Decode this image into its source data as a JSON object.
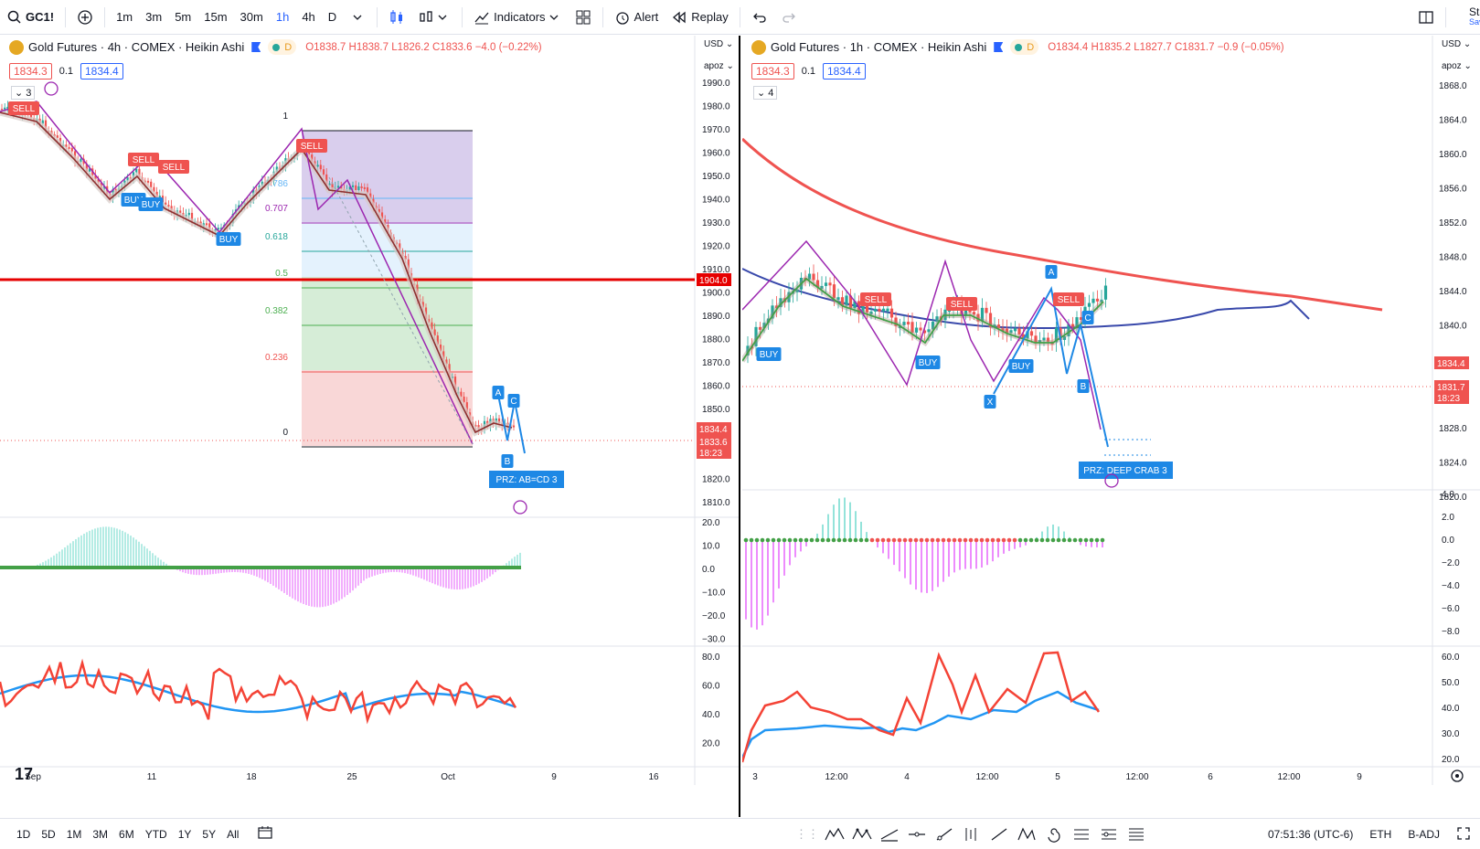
{
  "toolbar": {
    "symbol": "GC1!",
    "intervals": [
      "1m",
      "3m",
      "5m",
      "15m",
      "30m",
      "1h",
      "4h",
      "D"
    ],
    "active_interval": "1h",
    "indicators_label": "Indicators",
    "alert_label": "Alert",
    "replay_label": "Replay",
    "right_label_top": "Sta",
    "right_label_sub": "Save"
  },
  "left_chart": {
    "title": "Gold Futures · 4h · COMEX · Heikin Ashi",
    "delay_badge": "D",
    "ohlc": {
      "o": "O1838.7",
      "h": "H1838.7",
      "l": "L1826.2",
      "c": "C1833.6",
      "chg": "−4.0 (−0.22%)"
    },
    "bid": "1834.3",
    "spread": "0.1",
    "ask": "1834.4",
    "collapse_count": "3",
    "currency": "USD",
    "scale_mode": "apoz",
    "price_axis": [
      "1990.0",
      "1980.0",
      "1970.0",
      "1960.0",
      "1950.0",
      "1940.0",
      "1930.0",
      "1920.0",
      "1910.0",
      "1900.0",
      "1890.0",
      "1880.0",
      "1870.0",
      "1860.0",
      "1850.0",
      "1840.0",
      "1830.0",
      "1820.0",
      "1810.0"
    ],
    "macd_axis": [
      "20.0",
      "10.0",
      "0.0",
      "−10.0",
      "−20.0",
      "−30.0"
    ],
    "rsi_axis": [
      "80.0",
      "60.0",
      "40.0",
      "20.0"
    ],
    "time_axis": [
      "Sep",
      "11",
      "18",
      "25",
      "Oct",
      "9",
      "16"
    ],
    "fib_levels": [
      "1",
      "0.786",
      "0.707",
      "0.618",
      "0.5",
      "0.382",
      "0.236",
      "0"
    ],
    "horizontal_line_label": "1904.0",
    "last_price_labels": [
      "1834.4",
      "1833.6",
      "18:23"
    ],
    "signals": [
      "SELL",
      "SELL",
      "SELL",
      "BUY",
      "BUY",
      "BUY",
      "SELL"
    ],
    "pattern_points": [
      "A",
      "C",
      "B"
    ],
    "prz_label": "PRZ: AB=CD 3",
    "colors": {
      "fib_top": "#b39ddb",
      "fib_mid": "#a5d6a7",
      "fib_bottom": "#ef9a9a",
      "hline": "#e60000"
    }
  },
  "right_chart": {
    "title": "Gold Futures · 1h · COMEX · Heikin Ashi",
    "delay_badge": "D",
    "ohlc": {
      "o": "O1834.4",
      "h": "H1835.2",
      "l": "L1827.7",
      "c": "C1831.7",
      "chg": "−0.9 (−0.05%)"
    },
    "bid": "1834.3",
    "spread": "0.1",
    "ask": "1834.4",
    "collapse_count": "4",
    "currency": "USD",
    "scale_mode": "apoz",
    "price_axis": [
      "1868.0",
      "1864.0",
      "1860.0",
      "1856.0",
      "1852.0",
      "1848.0",
      "1844.0",
      "1840.0",
      "1836.0",
      "1832.0",
      "1828.0",
      "1824.0",
      "1820.0"
    ],
    "macd_axis": [
      "4.0",
      "2.0",
      "0.0",
      "−2.0",
      "−4.0",
      "−6.0",
      "−8.0"
    ],
    "rsi_axis": [
      "60.0",
      "50.0",
      "40.0",
      "30.0",
      "20.0"
    ],
    "time_axis": [
      "3",
      "12:00",
      "4",
      "12:00",
      "5",
      "12:00",
      "6",
      "12:00",
      "9"
    ],
    "last_price_labels": [
      "1834.4",
      "1831.7",
      "18:23"
    ],
    "signals": [
      "SELL",
      "SELL",
      "SELL",
      "BUY",
      "BUY",
      "BUY"
    ],
    "pattern_points": [
      "A",
      "C",
      "X",
      "B"
    ],
    "prz_label": "PRZ: DEEP CRAB 3"
  },
  "bottombar": {
    "ranges": [
      "1D",
      "5D",
      "1M",
      "3M",
      "6M",
      "YTD",
      "1Y",
      "5Y",
      "All"
    ],
    "time": "07:51:36 (UTC-6)",
    "session": "ETH",
    "adj": "B-ADJ"
  },
  "colors": {
    "up": "#26a69a",
    "down": "#ef5350",
    "accent": "#2962ff",
    "ma_red": "#f23645",
    "pattern": "#9c27b0",
    "signal_blue": "#1e88e5"
  }
}
